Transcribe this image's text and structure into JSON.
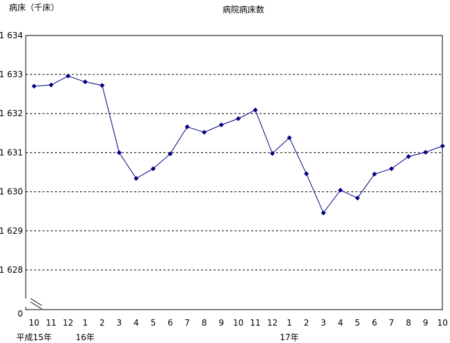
{
  "chart_data": {
    "type": "line",
    "title": "病院病床数",
    "ylabel": "病床（千床）",
    "ylim": [
      1628,
      1634
    ],
    "yticks": [
      {
        "value": 1634,
        "label": "1 634"
      },
      {
        "value": 1633,
        "label": "1 633"
      },
      {
        "value": 1632,
        "label": "1 632"
      },
      {
        "value": 1631,
        "label": "1 631"
      },
      {
        "value": 1630,
        "label": "1 630"
      },
      {
        "value": 1629,
        "label": "1 629"
      },
      {
        "value": 1628,
        "label": "1 628"
      }
    ],
    "y_origin_label": "0",
    "axis_break": true,
    "grid": "dashed horizontal",
    "categories": [
      "10",
      "11",
      "12",
      "1",
      "2",
      "3",
      "4",
      "5",
      "6",
      "7",
      "8",
      "9",
      "10",
      "11",
      "12",
      "1",
      "2",
      "3",
      "4",
      "5",
      "6",
      "7",
      "8",
      "9",
      "10"
    ],
    "year_labels": [
      {
        "index": 0,
        "label": "平成15年"
      },
      {
        "index": 3,
        "label": "16年"
      },
      {
        "index": 15,
        "label": "17年"
      }
    ],
    "series": [
      {
        "color": "#000080",
        "values": [
          1632.7,
          1632.73,
          1632.96,
          1632.81,
          1632.72,
          1631.0,
          1630.34,
          1630.59,
          1630.97,
          1631.66,
          1631.52,
          1631.71,
          1631.87,
          1632.09,
          1630.98,
          1631.38,
          1630.46,
          1629.46,
          1630.04,
          1629.84,
          1630.45,
          1630.59,
          1630.9,
          1631.01,
          1631.17
        ]
      }
    ]
  }
}
